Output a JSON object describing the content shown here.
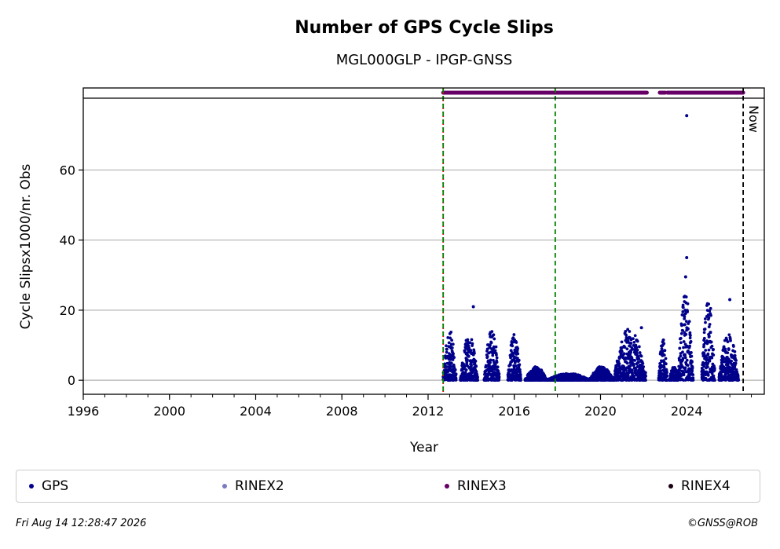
{
  "chart_data": {
    "type": "scatter",
    "title": "Number of GPS Cycle Slips",
    "subtitle": "MGL000GLP - IPGP-GNSS",
    "xlabel": "Year",
    "ylabel": "Cycle Slipsx1000/nr. Obs",
    "xlim": [
      1996,
      2027.6
    ],
    "ylim": [
      -4,
      80.5
    ],
    "x_ticks": [
      "1996",
      "2000",
      "2004",
      "2008",
      "2012",
      "2016",
      "2020",
      "2024"
    ],
    "y_ticks": [
      "0",
      "20",
      "40",
      "60"
    ],
    "grid": "horizontal",
    "colors": {
      "GPS": "#00008b",
      "RINEX2": "#7b7bbf",
      "RINEX3": "#660066",
      "RINEX4": "#1a0014",
      "red_line": "#ff0000",
      "green_line": "#008000",
      "now_line": "#000000",
      "grid": "#b0b0b0"
    },
    "vertical_lines": [
      {
        "x": 2012.7,
        "style": "red-dotted"
      },
      {
        "x": 2012.7,
        "style": "green-dashed"
      },
      {
        "x": 2017.9,
        "style": "green-dashed"
      },
      {
        "x": 2026.62,
        "style": "black-dashed",
        "label": "Now"
      }
    ],
    "rinex3_availability": [
      [
        2012.7,
        2022.15
      ],
      [
        2022.75,
        2023.0
      ],
      [
        2023.1,
        2026.62
      ]
    ],
    "series": [
      {
        "name": "GPS",
        "clusters": [
          {
            "start": 2012.7,
            "end": 2013.3,
            "max": 14.5
          },
          {
            "start": 2013.5,
            "end": 2014.3,
            "max": 13.0
          },
          {
            "start": 2014.6,
            "end": 2015.3,
            "max": 15.0
          },
          {
            "start": 2015.7,
            "end": 2016.3,
            "max": 13.5
          },
          {
            "start": 2016.5,
            "end": 2017.5,
            "max": 4.0
          },
          {
            "start": 2017.5,
            "end": 2019.5,
            "max": 2.0
          },
          {
            "start": 2019.5,
            "end": 2020.6,
            "max": 4.0
          },
          {
            "start": 2020.6,
            "end": 2022.1,
            "max": 15.0
          },
          {
            "start": 2022.7,
            "end": 2023.1,
            "max": 12.5
          },
          {
            "start": 2023.2,
            "end": 2023.6,
            "max": 4.0
          },
          {
            "start": 2023.6,
            "end": 2024.3,
            "max": 25.0
          },
          {
            "start": 2024.7,
            "end": 2025.3,
            "max": 24.0
          },
          {
            "start": 2025.5,
            "end": 2026.4,
            "max": 13.5
          }
        ],
        "outliers": [
          {
            "x": 2024.0,
            "y": 75.5
          },
          {
            "x": 2024.0,
            "y": 35.0
          },
          {
            "x": 2023.95,
            "y": 29.5
          },
          {
            "x": 2014.1,
            "y": 21.0
          },
          {
            "x": 2026.0,
            "y": 23.0
          },
          {
            "x": 2021.9,
            "y": 15.0
          }
        ]
      },
      {
        "name": "RINEX2"
      },
      {
        "name": "RINEX3"
      },
      {
        "name": "RINEX4"
      }
    ],
    "now_label": "Now",
    "legend_placement": "bottom"
  },
  "footer": {
    "timestamp": "Fri Aug 14 12:28:47 2026",
    "credit": "©GNSS@ROB"
  }
}
